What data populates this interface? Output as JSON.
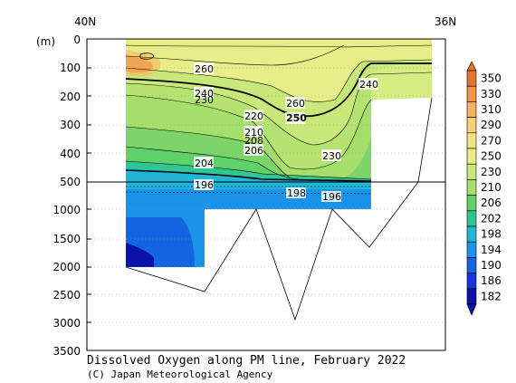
{
  "chart_data": {
    "type": "heatmap",
    "title": "Dissolved Oxygen along PM line, February 2022",
    "credit": "(C) Japan Meteorological Agency",
    "top_labels": [
      "40N",
      "36N"
    ],
    "ylabel": "(m)",
    "y_ticks_upper": [
      "0",
      "100",
      "200",
      "300",
      "400",
      "500"
    ],
    "y_ticks_lower": [
      "1000",
      "1500",
      "2000",
      "2500",
      "3000",
      "3500"
    ],
    "contour_labels": [
      "260",
      "240",
      "230",
      "260",
      "250",
      "220",
      "210",
      "206",
      "208",
      "230",
      "204",
      "196",
      "198",
      "196",
      "240"
    ],
    "colorbar": {
      "levels": [
        "350",
        "330",
        "310",
        "290",
        "270",
        "250",
        "230",
        "210",
        "206",
        "202",
        "198",
        "194",
        "190",
        "186",
        "182"
      ],
      "colors": [
        "#e8722f",
        "#f09548",
        "#f4b45e",
        "#f7cf74",
        "#f1e483",
        "#e8ee87",
        "#c8e97a",
        "#a6de6b",
        "#5fd16a",
        "#31c592",
        "#21b6d8",
        "#1a93e8",
        "#1366e0",
        "#1a35d6",
        "#0a12a8"
      ]
    }
  }
}
